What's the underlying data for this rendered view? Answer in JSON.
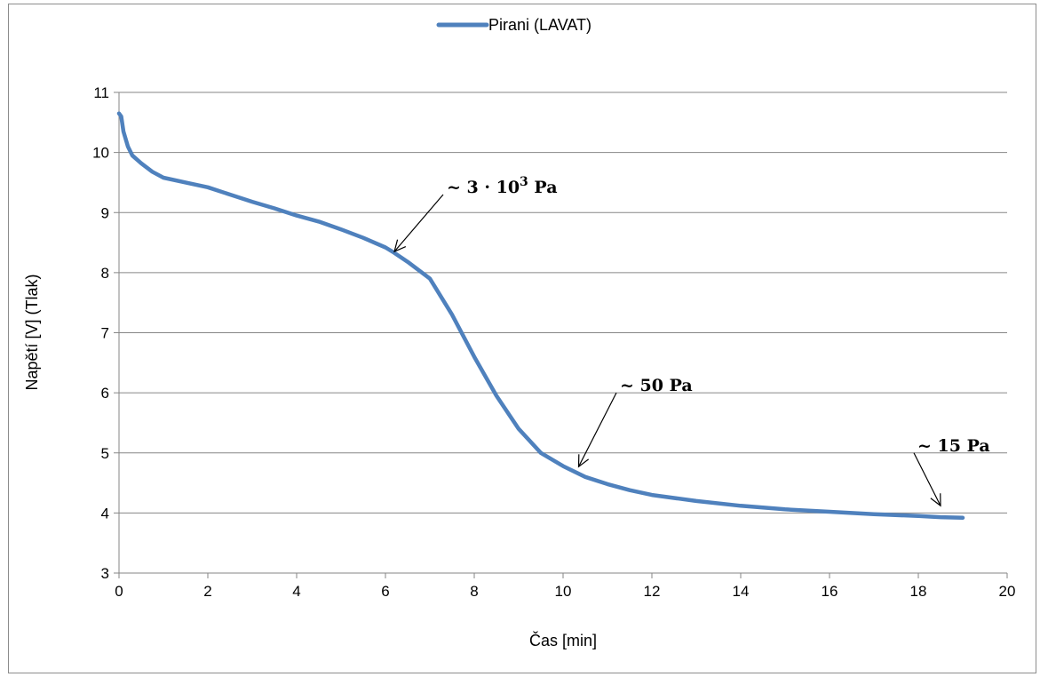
{
  "chart_data": {
    "type": "line",
    "title": "",
    "xlabel": "Čas [min]",
    "ylabel": "Napětí [V] (Tlak)",
    "xlim": [
      0,
      20
    ],
    "ylim": [
      3,
      11
    ],
    "xticks": [
      0,
      2,
      4,
      6,
      8,
      10,
      12,
      14,
      16,
      18,
      20
    ],
    "yticks": [
      3,
      4,
      5,
      6,
      7,
      8,
      9,
      10,
      11
    ],
    "grid": "horizontal",
    "legend_position": "top",
    "series": [
      {
        "name": "Pirani (LAVAT)",
        "color": "#4f81bd",
        "x": [
          0,
          0.05,
          0.1,
          0.2,
          0.3,
          0.5,
          0.75,
          1.0,
          1.5,
          2.0,
          2.5,
          3.0,
          3.5,
          4.0,
          4.5,
          5.0,
          5.5,
          6.0,
          6.2,
          6.5,
          7.0,
          7.5,
          8.0,
          8.5,
          9.0,
          9.5,
          10.0,
          10.5,
          11.0,
          11.5,
          12.0,
          13.0,
          14.0,
          15.0,
          16.0,
          17.0,
          18.0,
          18.5,
          19.0
        ],
        "y": [
          10.65,
          10.6,
          10.35,
          10.1,
          9.95,
          9.82,
          9.68,
          9.58,
          9.5,
          9.42,
          9.3,
          9.18,
          9.07,
          8.95,
          8.85,
          8.72,
          8.58,
          8.42,
          8.33,
          8.18,
          7.9,
          7.3,
          6.6,
          5.95,
          5.4,
          5.0,
          4.78,
          4.6,
          4.48,
          4.38,
          4.3,
          4.2,
          4.12,
          4.06,
          4.02,
          3.98,
          3.95,
          3.93,
          3.92
        ]
      }
    ],
    "annotations": [
      {
        "prefix": "~ 3 · 10",
        "sup": "3",
        "suffix": " Pa",
        "x": 6.2,
        "y": 8.35,
        "text_x": 7.3,
        "text_y": 9.3
      },
      {
        "prefix": "~ 50  Pa",
        "sup": "",
        "suffix": "",
        "x": 10.35,
        "y": 4.77,
        "text_x": 11.2,
        "text_y": 6.0
      },
      {
        "prefix": "~ 15 Pa",
        "sup": "",
        "suffix": "",
        "x": 18.5,
        "y": 4.12,
        "text_x": 17.9,
        "text_y": 5.0
      }
    ]
  }
}
